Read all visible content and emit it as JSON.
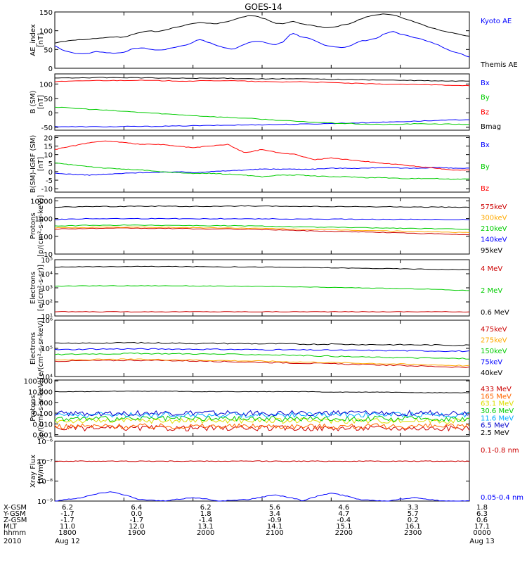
{
  "title": "GOES-14",
  "xaxis": {
    "tick_labels": [
      "1800",
      "1900",
      "2000",
      "2100",
      "2200",
      "2300",
      "0000"
    ],
    "rows": [
      {
        "label": "X-GSM",
        "values": [
          "6.2",
          "6.4",
          "6.2",
          "5.6",
          "4.6",
          "3.3",
          "1.8"
        ]
      },
      {
        "label": "Y-GSM",
        "values": [
          "-1.7",
          "0.0",
          "1.8",
          "3.4",
          "4.7",
          "5.7",
          "6.3"
        ]
      },
      {
        "label": "Z-GSM",
        "values": [
          "-1.7",
          "-1.7",
          "-1.4",
          "-0.9",
          "-0.4",
          "0.2",
          "0.6"
        ]
      },
      {
        "label": "MLT",
        "values": [
          "11.0",
          "12.0",
          "13.1",
          "14.1",
          "15.1",
          "16.1",
          "17.1"
        ]
      },
      {
        "label": "hhmm",
        "values": [
          "1800",
          "1900",
          "2000",
          "2100",
          "2200",
          "2300",
          "0000"
        ]
      }
    ],
    "year": "2010",
    "date_start": "Aug 12",
    "date_end": "Aug 13"
  },
  "chart_data": [
    {
      "type": "line",
      "ylabel": "AE_index",
      "yunit": "[nT]",
      "yticks": [
        "0",
        "50",
        "100",
        "150"
      ],
      "ylim": [
        0,
        150
      ],
      "log": false,
      "series": [
        {
          "name": "Kyoto AE",
          "color": "#0000ff",
          "values": [
            60,
            48,
            42,
            38,
            40,
            45,
            42,
            40,
            42,
            50,
            55,
            52,
            48,
            50,
            55,
            60,
            65,
            78,
            70,
            62,
            55,
            50,
            60,
            70,
            72,
            68,
            62,
            70,
            95,
            85,
            80,
            70,
            60,
            58,
            55,
            60,
            72,
            75,
            80,
            92,
            98,
            90,
            85,
            80,
            72,
            65,
            55,
            45,
            38,
            30
          ]
        },
        {
          "name": "Themis AE",
          "color": "#000000",
          "values": [
            68,
            72,
            75,
            76,
            78,
            80,
            82,
            84,
            82,
            88,
            95,
            100,
            98,
            102,
            108,
            112,
            118,
            122,
            120,
            118,
            122,
            128,
            135,
            140,
            138,
            130,
            120,
            118,
            125,
            120,
            115,
            112,
            108,
            110,
            115,
            120,
            130,
            138,
            142,
            145,
            142,
            135,
            128,
            120,
            112,
            105,
            98,
            95,
            90,
            85
          ]
        }
      ]
    },
    {
      "type": "line",
      "ylabel": "B (SM)",
      "yunit": "[nT]",
      "yticks": [
        "-50",
        "0",
        "50",
        "100"
      ],
      "ylim": [
        -60,
        135
      ],
      "log": false,
      "series": [
        {
          "name": "Bx",
          "color": "#0000ff",
          "values": [
            -47,
            -48,
            -48,
            -48,
            -47,
            -47,
            -46,
            -45,
            -44,
            -43,
            -42,
            -41,
            -40,
            -39,
            -38,
            -36,
            -35,
            -33,
            -31,
            -29,
            -27,
            -25,
            -23
          ]
        },
        {
          "name": "By",
          "color": "#00cc00",
          "values": [
            20,
            16,
            12,
            8,
            4,
            0,
            -4,
            -8,
            -12,
            -15,
            -18,
            -22,
            -26,
            -30,
            -33,
            -36,
            -38,
            -40,
            -40,
            -38,
            -38,
            -39,
            -40
          ]
        },
        {
          "name": "Bz",
          "color": "#ff0000",
          "values": [
            108,
            110,
            112,
            112,
            113,
            112,
            111,
            110,
            111,
            112,
            110,
            108,
            107,
            108,
            106,
            104,
            102,
            100,
            99,
            98,
            97,
            96,
            95
          ]
        },
        {
          "name": "Bmag",
          "color": "#000000",
          "values": [
            120,
            121,
            122,
            122,
            122,
            121,
            120,
            120,
            120,
            120,
            119,
            118,
            118,
            118,
            117,
            116,
            115,
            114,
            113,
            112,
            111,
            110,
            110
          ]
        }
      ]
    },
    {
      "type": "line",
      "ylabel": "B(SM)-IGRF (SM)",
      "yunit": "[nT]",
      "yticks": [
        "-10",
        "-5",
        "0",
        "5",
        "10",
        "15",
        "20"
      ],
      "ylim": [
        -12,
        21
      ],
      "log": false,
      "series": [
        {
          "name": "Bx",
          "color": "#0000ff",
          "values": [
            -1,
            -1.5,
            -2,
            -1.5,
            -1,
            -0.5,
            -0.5,
            0,
            -0.5,
            0,
            0.5,
            1,
            1.5,
            1.5,
            1.5,
            1.5,
            2,
            2,
            2,
            2.5,
            2,
            2,
            2.5,
            2,
            2
          ]
        },
        {
          "name": "By",
          "color": "#00cc00",
          "values": [
            5,
            4,
            3,
            2,
            1.5,
            1,
            0,
            -0.5,
            -1,
            -1,
            -1.5,
            -2,
            -3,
            -2,
            -2,
            -2.5,
            -3,
            -3,
            -3.5,
            -3.5,
            -4,
            -4,
            -4,
            -4.5,
            -4
          ]
        },
        {
          "name": "Bz",
          "color": "#ff0000",
          "values": [
            13,
            15,
            17,
            18,
            17,
            16,
            16,
            15,
            14,
            15,
            16,
            11,
            13,
            11,
            10,
            7,
            8,
            7,
            6,
            5,
            4,
            3,
            2,
            1,
            1
          ]
        }
      ]
    },
    {
      "type": "line",
      "ylabel": "Protons",
      "yunit": "[p/(cm²-s-sr-keV)]",
      "yticks": [
        "10",
        "100",
        "1000",
        "10000"
      ],
      "ylim": [
        10,
        15000
      ],
      "log": true,
      "series": [
        {
          "name": "575keV",
          "color": "#cc0000",
          "values": [
            260,
            270,
            280,
            280,
            290,
            280,
            280,
            270,
            260,
            260,
            250,
            240,
            230,
            210,
            200,
            190,
            180,
            170,
            160,
            150,
            140,
            130,
            120
          ]
        },
        {
          "name": "300keV",
          "color": "#ffaa00",
          "values": [
            300,
            310,
            320,
            320,
            330,
            320,
            320,
            310,
            300,
            300,
            290,
            280,
            270,
            250,
            240,
            230,
            220,
            210,
            200,
            190,
            180,
            170,
            160
          ]
        },
        {
          "name": "210keV",
          "color": "#00cc00",
          "values": [
            380,
            400,
            420,
            420,
            430,
            420,
            420,
            410,
            400,
            400,
            390,
            380,
            360,
            340,
            330,
            320,
            310,
            300,
            290,
            280,
            270,
            260,
            250
          ]
        },
        {
          "name": "140keV",
          "color": "#0000ff",
          "values": [
            900,
            950,
            1000,
            1000,
            1000,
            1000,
            1000,
            990,
            980,
            990,
            980,
            970,
            960,
            950,
            940,
            930,
            920,
            910,
            900,
            900,
            890,
            880,
            880
          ]
        },
        {
          "name": "95keV",
          "color": "#000000",
          "values": [
            4500,
            4600,
            4800,
            4800,
            5000,
            5000,
            5000,
            4900,
            4800,
            5000,
            5100,
            5000,
            5000,
            4900,
            4800,
            4700,
            4700,
            4600,
            4600,
            4500,
            4500,
            4400,
            4400
          ]
        }
      ]
    },
    {
      "type": "line",
      "ylabel": "Electrons",
      "yunit": "[e/(cm²-s-sr)]",
      "yticks": [
        "10¹",
        "10²",
        "10³",
        "10⁴",
        "10⁵"
      ],
      "ylim": [
        10,
        100000
      ],
      "log": true,
      "series": [
        {
          "name": "4 MeV",
          "color": "#cc0000",
          "values": [
            20,
            20,
            20,
            20,
            20,
            20,
            20,
            20,
            20,
            20,
            20,
            20,
            20,
            20,
            20,
            20,
            20,
            20,
            20,
            20,
            20,
            20,
            20
          ]
        },
        {
          "name": "2 MeV",
          "color": "#00cc00",
          "values": [
            1300,
            1350,
            1400,
            1400,
            1400,
            1400,
            1400,
            1380,
            1350,
            1300,
            1300,
            1250,
            1200,
            1150,
            1100,
            1050,
            1000,
            950,
            900,
            850,
            800,
            700,
            650
          ]
        },
        {
          "name": "0.6 MeV",
          "color": "#000000",
          "values": [
            30000,
            31000,
            32000,
            32000,
            33000,
            33000,
            33000,
            32000,
            32000,
            31000,
            31000,
            30000,
            29000,
            28000,
            27000,
            26000,
            25000,
            24000,
            23000,
            22000,
            21000,
            20000,
            19000
          ]
        }
      ]
    },
    {
      "type": "line",
      "ylabel": "Electrons",
      "yunit": "[e/(cm²-s-sr-keV)]",
      "yticks": [
        "10⁴",
        "10⁵",
        "10⁶"
      ],
      "ylim": [
        10000,
        1000000
      ],
      "log": true,
      "series": [
        {
          "name": "475keV",
          "color": "#cc0000",
          "values": [
            35000,
            36000,
            37000,
            37000,
            38000,
            37000,
            37000,
            36000,
            35000,
            34000,
            33000,
            32000,
            31000,
            30000,
            29000,
            28000,
            27000,
            26000,
            25000,
            24000,
            23000,
            22000,
            21000
          ]
        },
        {
          "name": "275keV",
          "color": "#ffaa00",
          "values": [
            38000,
            39000,
            40000,
            40000,
            41000,
            40000,
            40000,
            39000,
            38000,
            37000,
            36000,
            35000,
            34000,
            33000,
            32000,
            31000,
            30000,
            29000,
            28000,
            27000,
            26000,
            25000,
            24000
          ]
        },
        {
          "name": "150keV",
          "color": "#00cc00",
          "values": [
            60000,
            62000,
            64000,
            64000,
            66000,
            65000,
            65000,
            64000,
            63000,
            62000,
            61000,
            60000,
            58000,
            56000,
            54000,
            52000,
            50000,
            48000,
            47000,
            46000,
            45000,
            44000,
            43000
          ]
        },
        {
          "name": "75keV",
          "color": "#0000ff",
          "values": [
            90000,
            92000,
            95000,
            95000,
            96000,
            95000,
            95000,
            94000,
            93000,
            92000,
            91000,
            90000,
            89000,
            88000,
            87000,
            86000,
            85000,
            84000,
            83000,
            82000,
            81000,
            80000,
            79000
          ]
        },
        {
          "name": "40keV",
          "color": "#000000",
          "values": [
            150000,
            150000,
            155000,
            155000,
            160000,
            155000,
            155000,
            150000,
            150000,
            150000,
            148000,
            145000,
            145000,
            142000,
            140000,
            140000,
            138000,
            136000,
            135000,
            134000,
            132000,
            130000,
            130000
          ]
        }
      ]
    },
    {
      "type": "line",
      "ylabel": "Protons",
      "yunit": "[p/(cm²-s-sr-keV)]",
      "yticks": [
        "0.001",
        "0.010",
        "0.100",
        "1.000",
        "10.000",
        "100.000"
      ],
      "ylim": [
        0.0007,
        120
      ],
      "log": true,
      "series": [
        {
          "name": "433 MeV",
          "color": "#cc0000",
          "values": [
            0.004,
            0.004,
            0.004,
            0.004,
            0.004,
            0.004,
            0.004,
            0.004,
            0.004,
            0.004,
            0.004,
            0.004,
            0.004,
            0.004,
            0.004,
            0.004
          ]
        },
        {
          "name": "165 MeV",
          "color": "#ff6600",
          "values": [
            0.006,
            0.006,
            0.006,
            0.006,
            0.006,
            0.006,
            0.006,
            0.006,
            0.006,
            0.006,
            0.006,
            0.006,
            0.006,
            0.006,
            0.006,
            0.006
          ]
        },
        {
          "name": "63.1 MeV",
          "color": "#dddd00",
          "values": [
            0.02,
            0.02,
            0.02,
            0.02,
            0.02,
            0.02,
            0.02,
            0.02,
            0.02,
            0.02,
            0.02,
            0.02,
            0.02,
            0.02,
            0.02,
            0.02
          ]
        },
        {
          "name": "30.6 MeV",
          "color": "#00cc00",
          "values": [
            0.03,
            0.03,
            0.03,
            0.03,
            0.03,
            0.03,
            0.03,
            0.03,
            0.03,
            0.03,
            0.03,
            0.03,
            0.03,
            0.03,
            0.03,
            0.03
          ]
        },
        {
          "name": "11.6 MeV",
          "color": "#00aaff",
          "values": [
            0.07,
            0.07,
            0.07,
            0.07,
            0.07,
            0.07,
            0.07,
            0.07,
            0.07,
            0.07,
            0.07,
            0.07,
            0.07,
            0.07,
            0.07,
            0.07
          ]
        },
        {
          "name": "6.5 MeV",
          "color": "#0000cc",
          "values": [
            0.1,
            0.1,
            0.1,
            0.1,
            0.1,
            0.1,
            0.1,
            0.1,
            0.1,
            0.1,
            0.1,
            0.1,
            0.1,
            0.1,
            0.1,
            0.1
          ]
        },
        {
          "name": "2.5 MeV",
          "color": "#000000",
          "values": [
            10,
            10,
            11,
            11,
            11,
            10,
            10,
            10,
            10,
            10,
            9,
            9,
            9,
            8,
            8,
            8
          ]
        }
      ]
    },
    {
      "type": "line",
      "ylabel": "Xray Flux",
      "yunit": "[W/m²]",
      "yticks": [
        "10⁻⁹",
        "10⁻⁸",
        "10⁻⁷",
        "10⁻⁶"
      ],
      "ylim": [
        1e-09,
        1e-06
      ],
      "log": true,
      "series": [
        {
          "name": "0.1-0.8 nm",
          "color": "#cc0000",
          "values": [
            1e-07,
            1e-07,
            1e-07,
            1e-07,
            1e-07,
            1e-07,
            1e-07,
            1e-07,
            1e-07,
            1e-07,
            1e-07,
            1e-07,
            1e-07,
            1e-07,
            1e-07,
            1e-07
          ]
        },
        {
          "name": "0.05-0.4 nm",
          "color": "#0000ff",
          "values": [
            1e-09,
            1.5e-09,
            3e-09,
            1.2e-09,
            1e-09,
            1.5e-09,
            1e-09,
            1.2e-09,
            2e-09,
            1e-09,
            2.5e-09,
            1.2e-09,
            1e-09,
            1.5e-09,
            1e-09,
            1e-09
          ]
        }
      ]
    }
  ]
}
